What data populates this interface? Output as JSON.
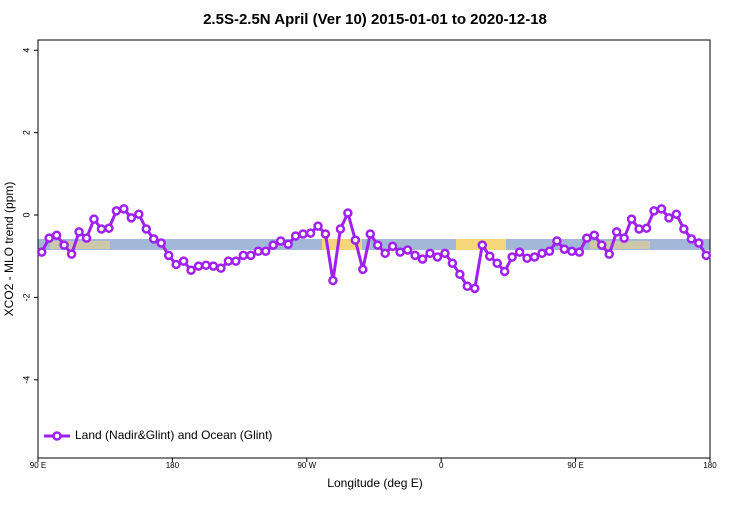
{
  "chart_data": {
    "type": "line",
    "title": "2.5S-2.5N April (Ver 10)   2015-01-01 to 2020-12-18",
    "xlabel": "Longitude (deg E)",
    "ylabel": "XCO2 - MLO trend (ppm)",
    "x": [
      92.5,
      97.5,
      102.5,
      107.5,
      112.5,
      117.5,
      122.5,
      127.5,
      132.5,
      137.5,
      142.5,
      147.5,
      152.5,
      157.5,
      162.5,
      167.5,
      172.5,
      177.5,
      182.5,
      187.5,
      192.5,
      197.5,
      202.5,
      207.5,
      212.5,
      217.5,
      222.5,
      227.5,
      232.5,
      237.5,
      242.5,
      247.5,
      252.5,
      257.5,
      262.5,
      267.5,
      272.5,
      277.5,
      282.5,
      287.5,
      292.5,
      297.5,
      302.5,
      307.5,
      312.5,
      317.5,
      322.5,
      327.5,
      332.5,
      337.5,
      342.5,
      347.5,
      352.5,
      357.5,
      362.5,
      367.5,
      372.5,
      377.5,
      382.5,
      387.5,
      392.5,
      397.5,
      402.5,
      407.5,
      412.5,
      417.5,
      422.5,
      427.5,
      432.5,
      437.5,
      442.5,
      447.5,
      452.5,
      457.5,
      462.5,
      467.5,
      472.5,
      477.5,
      482.5,
      487.5,
      492.5,
      497.5,
      502.5,
      507.5,
      512.5,
      517.5,
      522.5,
      527.5,
      532.5,
      537.5
    ],
    "series": [
      {
        "name": "Land (Nadir&Glint) and Ocean (Glint)",
        "color": "#a020f0",
        "values": [
          -0.9,
          -0.56,
          -0.49,
          -0.73,
          -0.95,
          -0.41,
          -0.56,
          -0.1,
          -0.34,
          -0.32,
          0.1,
          0.15,
          -0.07,
          0.02,
          -0.34,
          -0.58,
          -0.68,
          -0.98,
          -1.2,
          -1.12,
          -1.34,
          -1.24,
          -1.22,
          -1.24,
          -1.29,
          -1.12,
          -1.12,
          -0.98,
          -0.98,
          -0.88,
          -0.88,
          -0.73,
          -0.63,
          -0.71,
          -0.51,
          -0.46,
          -0.44,
          -0.27,
          -0.46,
          -1.59,
          -0.34,
          0.05,
          -0.61,
          -1.32,
          -0.46,
          -0.73,
          -0.93,
          -0.76,
          -0.9,
          -0.85,
          -0.98,
          -1.07,
          -0.93,
          -1.02,
          -0.93,
          -1.17,
          -1.44,
          -1.73,
          -1.78,
          -0.73,
          -1.0,
          -1.17,
          -1.37,
          -1.02,
          -0.9,
          -1.05,
          -1.02,
          -0.93,
          -0.88,
          -0.63,
          -0.83,
          -0.88,
          -0.9,
          -0.56,
          -0.49,
          -0.73,
          -0.95,
          -0.41,
          -0.56,
          -0.1,
          -0.34,
          -0.32,
          0.1,
          0.15,
          -0.07,
          0.02,
          -0.34,
          -0.58,
          -0.68,
          -0.98
        ]
      }
    ],
    "xlim": [
      90,
      540
    ],
    "xticks": [
      {
        "value": 90,
        "label": "90 E"
      },
      180,
      {
        "value": 270,
        "label": "90 W"
      },
      {
        "value": 360,
        "label": "0"
      },
      {
        "value": 450,
        "label": "90 E"
      },
      {
        "value": 540,
        "label": "180"
      }
    ],
    "ylim": [
      -5.9,
      4.25
    ],
    "yticks": [
      -4,
      -2,
      0,
      2,
      4
    ],
    "legend": "bottom-left"
  }
}
